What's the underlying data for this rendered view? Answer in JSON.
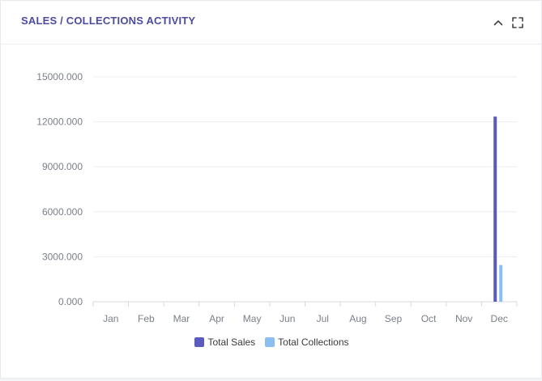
{
  "header": {
    "title": "SALES / COLLECTIONS ACTIVITY",
    "collapse_icon": "chevron-up-icon",
    "fullscreen_icon": "fullscreen-icon"
  },
  "colors": {
    "sales": "#5b5bbd",
    "collections": "#8bbff2",
    "title": "#4b4ba0"
  },
  "chart_data": {
    "type": "bar",
    "categories": [
      "Jan",
      "Feb",
      "Mar",
      "Apr",
      "May",
      "Jun",
      "Jul",
      "Aug",
      "Sep",
      "Oct",
      "Nov",
      "Dec"
    ],
    "series": [
      {
        "name": "Total Sales",
        "values": [
          0,
          0,
          0,
          0,
          0,
          0,
          0,
          0,
          0,
          0,
          0,
          12350
        ]
      },
      {
        "name": "Total Collections",
        "values": [
          0,
          0,
          0,
          0,
          0,
          0,
          0,
          0,
          0,
          0,
          0,
          2450
        ]
      }
    ],
    "yticks": [
      "0.000",
      "3000.000",
      "6000.000",
      "9000.000",
      "12000.000",
      "15000.000"
    ],
    "ylim": [
      0,
      15000
    ],
    "grid": true,
    "legend_position": "bottom-center"
  }
}
